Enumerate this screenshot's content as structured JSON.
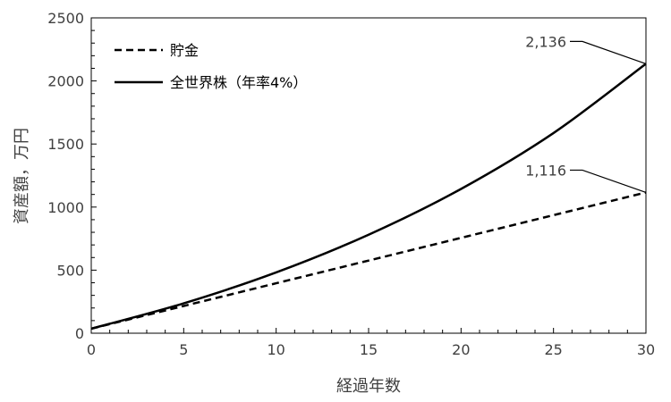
{
  "chart_data": {
    "type": "line",
    "xlabel": "経過年数",
    "ylabel": "資産額，万円",
    "xlim": [
      0,
      30
    ],
    "ylim": [
      0,
      2500
    ],
    "x_ticks": [
      0,
      5,
      10,
      15,
      20,
      25,
      30
    ],
    "y_ticks": [
      0,
      500,
      1000,
      1500,
      2000,
      2500
    ],
    "x_tick_labels": [
      "0",
      "5",
      "10",
      "15",
      "20",
      "25",
      "30"
    ],
    "y_tick_labels": [
      "0",
      "500",
      "1000",
      "1500",
      "2000",
      "2500"
    ],
    "grid": false,
    "legend_position": "top-left",
    "series": [
      {
        "name": "貯金",
        "style": "dashed",
        "color": "#000000",
        "x": [
          0,
          5,
          10,
          15,
          20,
          25,
          30
        ],
        "values": [
          36,
          216,
          396,
          576,
          756,
          936,
          1116
        ]
      },
      {
        "name": "全世界株（年率4%）",
        "style": "solid",
        "color": "#000000",
        "x": [
          0,
          5,
          10,
          15,
          20,
          25,
          30
        ],
        "values": [
          36,
          237,
          482,
          781,
          1144,
          1587,
          2136
        ]
      }
    ],
    "annotations": [
      {
        "text": "2,136",
        "x": 30,
        "y": 2136
      },
      {
        "text": "1,116",
        "x": 30,
        "y": 1116
      }
    ]
  }
}
